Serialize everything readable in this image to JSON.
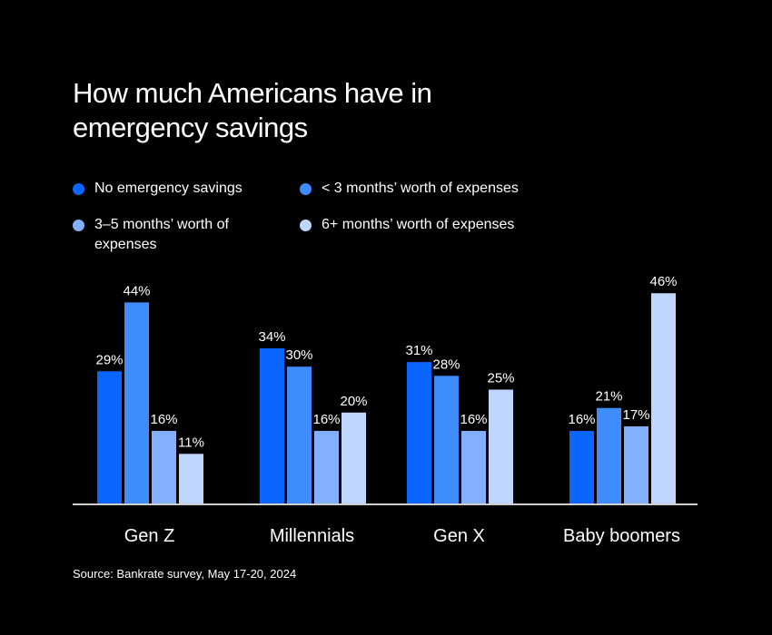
{
  "title": "How much Americans have in emergency savings",
  "source": "Source: Bankrate survey, May 17-20, 2024",
  "legend": [
    {
      "label": "No emergency savings",
      "color": "#0a66ff"
    },
    {
      "label": "< 3 months’ worth of expenses",
      "color": "#3f8cff"
    },
    {
      "label": "3–5 months’ worth of expenses",
      "color": "#82b0ff"
    },
    {
      "label": "6+ months’ worth of expenses",
      "color": "#bfd6ff"
    }
  ],
  "chart_data": {
    "type": "bar",
    "title": "How much Americans have in emergency savings",
    "xlabel": "",
    "ylabel": "",
    "ylim": [
      0,
      46
    ],
    "grid": false,
    "legend_position": "top",
    "categories": [
      "Gen Z",
      "Millennials",
      "Gen X",
      "Baby boomers"
    ],
    "series": [
      {
        "name": "No emergency savings",
        "color": "#0a66ff",
        "values": [
          29,
          34,
          31,
          16
        ]
      },
      {
        "name": "< 3 months’ worth of expenses",
        "color": "#3f8cff",
        "values": [
          44,
          30,
          28,
          21
        ]
      },
      {
        "name": "3–5 months’ worth of expenses",
        "color": "#82b0ff",
        "values": [
          16,
          16,
          16,
          17
        ]
      },
      {
        "name": "6+ months’ worth of expenses",
        "color": "#bfd6ff",
        "values": [
          11,
          20,
          25,
          46
        ]
      }
    ],
    "value_suffix": "%"
  }
}
